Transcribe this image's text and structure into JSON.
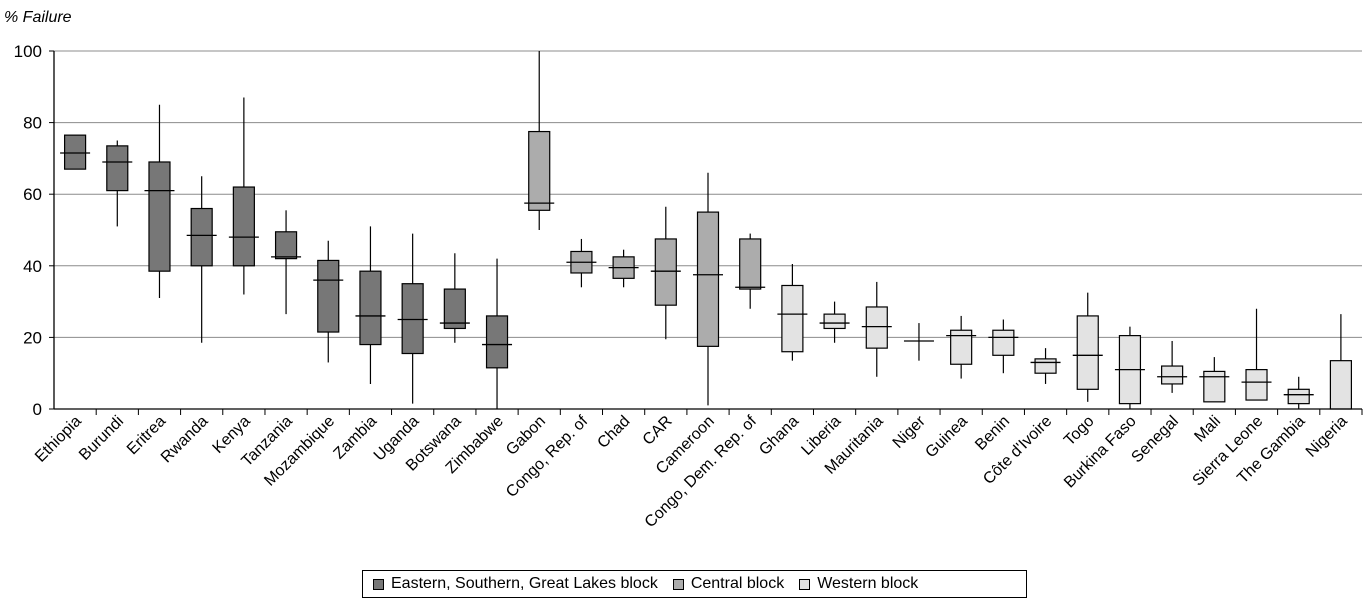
{
  "chart_data": {
    "type": "box",
    "ylabel": "% Failure",
    "ylim": [
      0,
      100
    ],
    "yticks": [
      0,
      20,
      40,
      60,
      80,
      100
    ],
    "grid": true,
    "legend_position": "bottom",
    "groups": [
      {
        "name": "Eastern, Southern, Great Lakes block",
        "color": "#777777"
      },
      {
        "name": "Central block",
        "color": "#acacac"
      },
      {
        "name": "Western block",
        "color": "#e3e3e3"
      }
    ],
    "categories": [
      {
        "label": "Ethiopia",
        "group": 0,
        "box": [
          67,
          76.5
        ],
        "median": 71.5,
        "whisker": null
      },
      {
        "label": "Burundi",
        "group": 0,
        "box": [
          61,
          73.5
        ],
        "median": 69,
        "whisker": [
          51,
          75
        ]
      },
      {
        "label": "Eritrea",
        "group": 0,
        "box": [
          38.5,
          69
        ],
        "median": 61,
        "whisker": [
          31,
          85
        ]
      },
      {
        "label": "Rwanda",
        "group": 0,
        "box": [
          40,
          56
        ],
        "median": 48.5,
        "whisker": [
          18.5,
          65
        ]
      },
      {
        "label": "Kenya",
        "group": 0,
        "box": [
          40,
          62
        ],
        "median": 48,
        "whisker": [
          32,
          87
        ]
      },
      {
        "label": "Tanzania",
        "group": 0,
        "box": [
          42,
          49.5
        ],
        "median": 42.5,
        "whisker": [
          26.5,
          55.5
        ]
      },
      {
        "label": "Mozambique",
        "group": 0,
        "box": [
          21.5,
          41.5
        ],
        "median": 36,
        "whisker": [
          13,
          47
        ]
      },
      {
        "label": "Zambia",
        "group": 0,
        "box": [
          18,
          38.5
        ],
        "median": 26,
        "whisker": [
          7,
          51
        ]
      },
      {
        "label": "Uganda",
        "group": 0,
        "box": [
          15.5,
          35
        ],
        "median": 25,
        "whisker": [
          1.5,
          49
        ]
      },
      {
        "label": "Botswana",
        "group": 0,
        "box": [
          22.5,
          33.5
        ],
        "median": 24,
        "whisker": [
          18.5,
          43.5
        ]
      },
      {
        "label": "Zimbabwe",
        "group": 0,
        "box": [
          11.5,
          26
        ],
        "median": 18,
        "whisker": [
          0,
          42
        ]
      },
      {
        "label": "Gabon",
        "group": 1,
        "box": [
          55.5,
          77.5
        ],
        "median": 57.5,
        "whisker": [
          50,
          100
        ]
      },
      {
        "label": "Congo, Rep. of",
        "group": 1,
        "box": [
          38,
          44
        ],
        "median": 41,
        "whisker": [
          34,
          47.5
        ]
      },
      {
        "label": "Chad",
        "group": 1,
        "box": [
          36.5,
          42.5
        ],
        "median": 39.5,
        "whisker": [
          34,
          44.5
        ]
      },
      {
        "label": "CAR",
        "group": 1,
        "box": [
          29,
          47.5
        ],
        "median": 38.5,
        "whisker": [
          19.5,
          56.5
        ]
      },
      {
        "label": "Cameroon",
        "group": 1,
        "box": [
          17.5,
          55
        ],
        "median": 37.5,
        "whisker": [
          1,
          66
        ]
      },
      {
        "label": "Congo, Dem. Rep. of",
        "group": 1,
        "box": [
          33.5,
          47.5
        ],
        "median": 34,
        "whisker": [
          28,
          49
        ]
      },
      {
        "label": "Ghana",
        "group": 2,
        "box": [
          16,
          34.5
        ],
        "median": 26.5,
        "whisker": [
          13.5,
          40.5
        ]
      },
      {
        "label": "Liberia",
        "group": 2,
        "box": [
          22.5,
          26.5
        ],
        "median": 24,
        "whisker": [
          18.5,
          30
        ]
      },
      {
        "label": "Mauritania",
        "group": 2,
        "box": [
          17,
          28.5
        ],
        "median": 23,
        "whisker": [
          9,
          35.5
        ]
      },
      {
        "label": "Niger",
        "group": 2,
        "box": null,
        "median": 19,
        "whisker": [
          13.5,
          24
        ]
      },
      {
        "label": "Guinea",
        "group": 2,
        "box": [
          12.5,
          22
        ],
        "median": 20.5,
        "whisker": [
          8.5,
          26
        ]
      },
      {
        "label": "Benin",
        "group": 2,
        "box": [
          15,
          22
        ],
        "median": 20,
        "whisker": [
          10,
          25
        ]
      },
      {
        "label": "Côte d'Ivoire",
        "group": 2,
        "box": [
          10,
          14
        ],
        "median": 13,
        "whisker": [
          7,
          17
        ]
      },
      {
        "label": "Togo",
        "group": 2,
        "box": [
          5.5,
          26
        ],
        "median": 15,
        "whisker": [
          2,
          32.5
        ]
      },
      {
        "label": "Burkina Faso",
        "group": 2,
        "box": [
          1.5,
          20.5
        ],
        "median": 11,
        "whisker": [
          0,
          23
        ]
      },
      {
        "label": "Senegal",
        "group": 2,
        "box": [
          7,
          12
        ],
        "median": 9,
        "whisker": [
          4.5,
          19
        ]
      },
      {
        "label": "Mali",
        "group": 2,
        "box": [
          2,
          10.5
        ],
        "median": 9,
        "whisker": [
          2,
          14.5
        ]
      },
      {
        "label": "Sierra Leone",
        "group": 2,
        "box": [
          2.5,
          11
        ],
        "median": 7.5,
        "whisker": [
          2.5,
          28
        ]
      },
      {
        "label": "The Gambia",
        "group": 2,
        "box": [
          1.5,
          5.5
        ],
        "median": 4,
        "whisker": [
          0,
          9
        ]
      },
      {
        "label": "Nigeria",
        "group": 2,
        "box": [
          0,
          13.5
        ],
        "median": null,
        "whisker": [
          0,
          26.5
        ]
      }
    ]
  }
}
